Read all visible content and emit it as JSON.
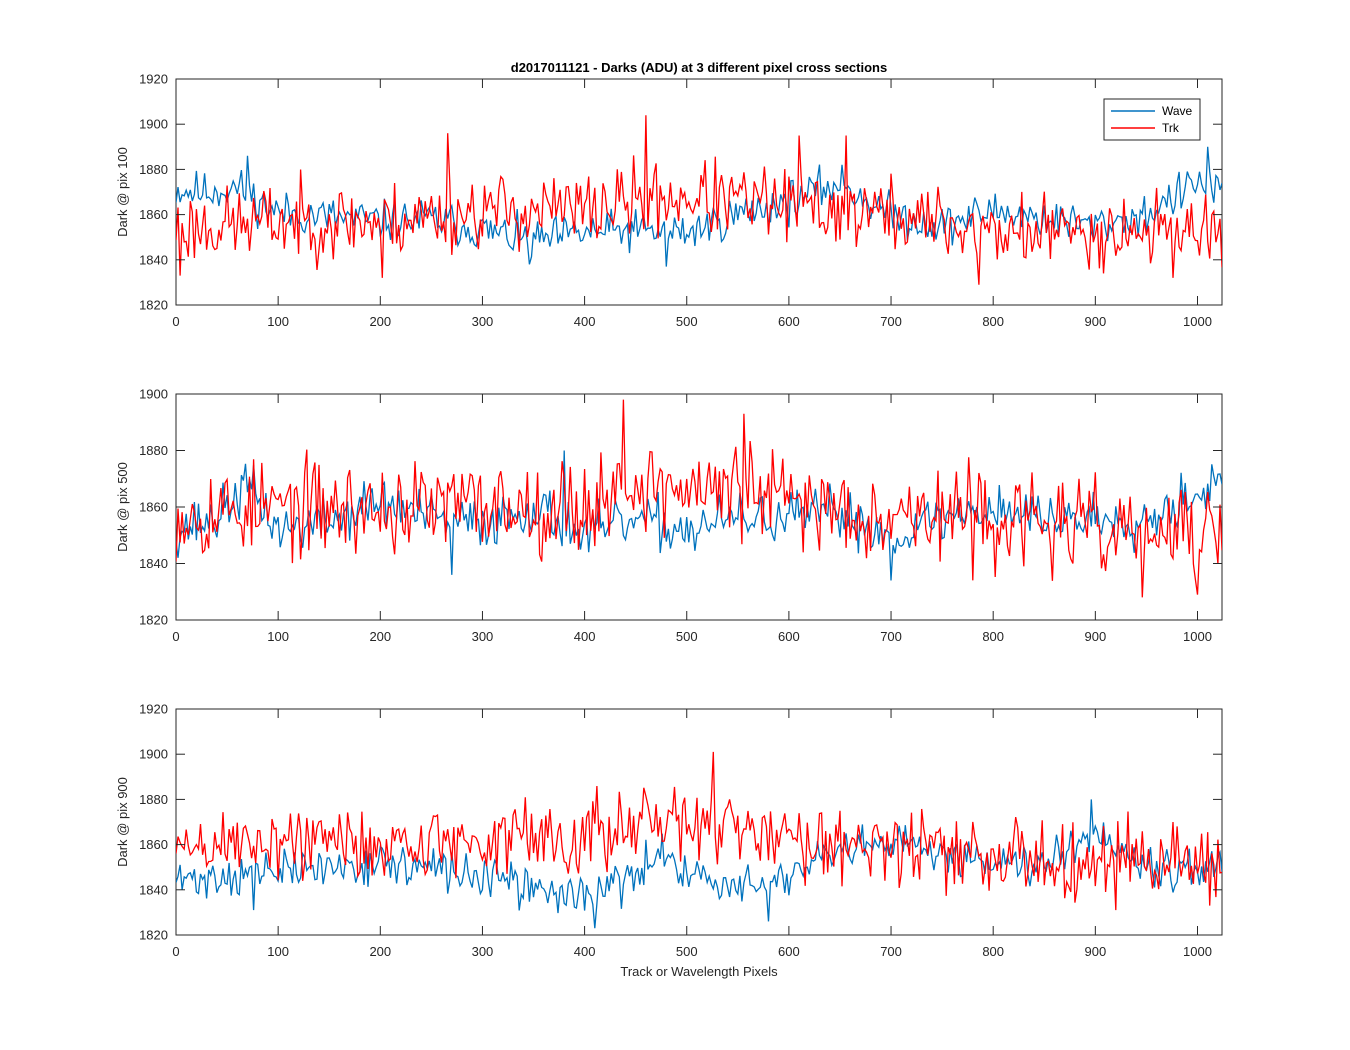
{
  "chart_data": [
    {
      "type": "line",
      "title": "d2017011121 - Darks (ADU) at 3 different pixel cross sections",
      "xlabel": "",
      "ylabel": "Dark @ pix 100",
      "xlim": [
        0,
        1024
      ],
      "ylim": [
        1820,
        1920
      ],
      "xticks": [
        0,
        100,
        200,
        300,
        400,
        500,
        600,
        700,
        800,
        900,
        1000
      ],
      "yticks": [
        1820,
        1840,
        1860,
        1880,
        1900,
        1920
      ],
      "legend": {
        "placement": "top-right",
        "entries": [
          "Wave",
          "Trk"
        ]
      },
      "series": [
        {
          "name": "Wave",
          "color": "#0072BD",
          "trend": [
            [
              0,
              1871
            ],
            [
              30,
              1870
            ],
            [
              60,
              1872
            ],
            [
              80,
              1866
            ],
            [
              100,
              1861
            ],
            [
              150,
              1859
            ],
            [
              200,
              1857
            ],
            [
              250,
              1858
            ],
            [
              300,
              1853
            ],
            [
              350,
              1848
            ],
            [
              400,
              1852
            ],
            [
              450,
              1853
            ],
            [
              500,
              1852
            ],
            [
              550,
              1860
            ],
            [
              600,
              1866
            ],
            [
              650,
              1874
            ],
            [
              700,
              1860
            ],
            [
              750,
              1855
            ],
            [
              800,
              1862
            ],
            [
              850,
              1858
            ],
            [
              900,
              1855
            ],
            [
              950,
              1860
            ],
            [
              1000,
              1874
            ],
            [
              1024,
              1872
            ]
          ],
          "noise": 6,
          "seed": 11,
          "spikes": [
            [
              70,
              1886
            ],
            [
              345,
              1838
            ],
            [
              480,
              1837
            ],
            [
              1010,
              1890
            ]
          ]
        },
        {
          "name": "Trk",
          "color": "#FF0000",
          "trend": [
            [
              0,
              1854
            ],
            [
              100,
              1857
            ],
            [
              200,
              1857
            ],
            [
              300,
              1862
            ],
            [
              400,
              1862
            ],
            [
              450,
              1866
            ],
            [
              500,
              1868
            ],
            [
              550,
              1866
            ],
            [
              600,
              1864
            ],
            [
              700,
              1860
            ],
            [
              800,
              1852
            ],
            [
              900,
              1853
            ],
            [
              1000,
              1853
            ],
            [
              1024,
              1855
            ]
          ],
          "noise": 11,
          "seed": 23,
          "spikes": [
            [
              4,
              1833
            ],
            [
              202,
              1832
            ],
            [
              266,
              1896
            ],
            [
              460,
              1904
            ],
            [
              610,
              1895
            ],
            [
              655,
              1895
            ],
            [
              785,
              1829
            ]
          ]
        }
      ]
    },
    {
      "type": "line",
      "title": "",
      "xlabel": "",
      "ylabel": "Dark @ pix 500",
      "xlim": [
        0,
        1024
      ],
      "ylim": [
        1820,
        1900
      ],
      "xticks": [
        0,
        100,
        200,
        300,
        400,
        500,
        600,
        700,
        800,
        900,
        1000
      ],
      "yticks": [
        1820,
        1840,
        1860,
        1880,
        1900
      ],
      "series": [
        {
          "name": "Wave",
          "color": "#0072BD",
          "trend": [
            [
              0,
              1852
            ],
            [
              40,
              1856
            ],
            [
              70,
              1868
            ],
            [
              100,
              1852
            ],
            [
              150,
              1855
            ],
            [
              200,
              1862
            ],
            [
              250,
              1856
            ],
            [
              300,
              1854
            ],
            [
              350,
              1860
            ],
            [
              400,
              1850
            ],
            [
              450,
              1855
            ],
            [
              500,
              1852
            ],
            [
              550,
              1856
            ],
            [
              600,
              1856
            ],
            [
              650,
              1858
            ],
            [
              700,
              1850
            ],
            [
              750,
              1856
            ],
            [
              800,
              1860
            ],
            [
              850,
              1856
            ],
            [
              900,
              1856
            ],
            [
              950,
              1856
            ],
            [
              1000,
              1866
            ],
            [
              1024,
              1868
            ]
          ],
          "noise": 6,
          "seed": 37,
          "spikes": [
            [
              270,
              1836
            ],
            [
              380,
              1880
            ],
            [
              700,
              1834
            ]
          ]
        },
        {
          "name": "Trk",
          "color": "#FF0000",
          "trend": [
            [
              0,
              1858
            ],
            [
              100,
              1860
            ],
            [
              200,
              1859
            ],
            [
              300,
              1861
            ],
            [
              400,
              1860
            ],
            [
              450,
              1868
            ],
            [
              500,
              1866
            ],
            [
              550,
              1866
            ],
            [
              600,
              1862
            ],
            [
              700,
              1858
            ],
            [
              800,
              1856
            ],
            [
              900,
              1852
            ],
            [
              950,
              1850
            ],
            [
              1000,
              1850
            ],
            [
              1024,
              1852
            ]
          ],
          "noise": 11,
          "seed": 53,
          "spikes": [
            [
              437,
              1898
            ],
            [
              555,
              1893
            ],
            [
              945,
              1828
            ],
            [
              1000,
              1829
            ]
          ]
        }
      ]
    },
    {
      "type": "line",
      "title": "",
      "xlabel": "Track or Wavelength Pixels",
      "ylabel": "Dark @ pix 900",
      "xlim": [
        0,
        1024
      ],
      "ylim": [
        1820,
        1920
      ],
      "xticks": [
        0,
        100,
        200,
        300,
        400,
        500,
        600,
        700,
        800,
        900,
        1000
      ],
      "yticks": [
        1820,
        1840,
        1860,
        1880,
        1900,
        1920
      ],
      "series": [
        {
          "name": "Wave",
          "color": "#0072BD",
          "trend": [
            [
              0,
              1844
            ],
            [
              100,
              1848
            ],
            [
              200,
              1852
            ],
            [
              300,
              1846
            ],
            [
              350,
              1840
            ],
            [
              400,
              1838
            ],
            [
              450,
              1845
            ],
            [
              480,
              1858
            ],
            [
              500,
              1848
            ],
            [
              550,
              1840
            ],
            [
              600,
              1846
            ],
            [
              650,
              1856
            ],
            [
              700,
              1860
            ],
            [
              750,
              1857
            ],
            [
              800,
              1853
            ],
            [
              850,
              1853
            ],
            [
              900,
              1866
            ],
            [
              950,
              1852
            ],
            [
              1000,
              1848
            ],
            [
              1024,
              1852
            ]
          ],
          "noise": 6,
          "seed": 71,
          "spikes": [
            [
              75,
              1831
            ],
            [
              410,
              1823
            ],
            [
              580,
              1826
            ],
            [
              895,
              1880
            ]
          ]
        },
        {
          "name": "Trk",
          "color": "#FF0000",
          "trend": [
            [
              0,
              1858
            ],
            [
              100,
              1862
            ],
            [
              200,
              1860
            ],
            [
              300,
              1862
            ],
            [
              400,
              1864
            ],
            [
              450,
              1867
            ],
            [
              500,
              1870
            ],
            [
              550,
              1866
            ],
            [
              600,
              1864
            ],
            [
              700,
              1860
            ],
            [
              750,
              1856
            ],
            [
              800,
              1854
            ],
            [
              900,
              1854
            ],
            [
              950,
              1854
            ],
            [
              1000,
              1852
            ],
            [
              1024,
              1855
            ]
          ],
          "noise": 11,
          "seed": 89,
          "spikes": [
            [
              525,
              1901
            ],
            [
              920,
              1831
            ],
            [
              1012,
              1833
            ]
          ]
        }
      ]
    }
  ]
}
